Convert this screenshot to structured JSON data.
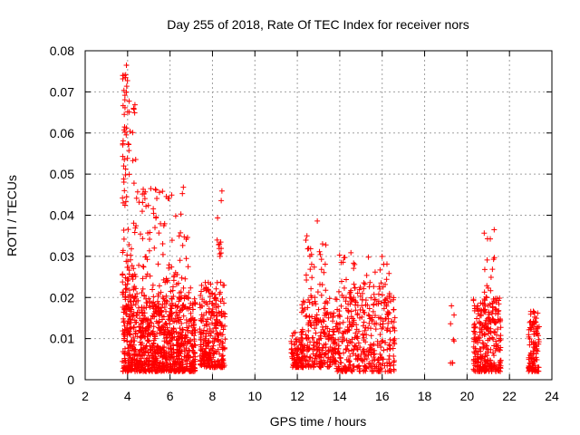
{
  "chart_data": {
    "type": "scatter",
    "title": "Day 255 of 2018, Rate Of TEC Index for receiver nors",
    "xlabel": "GPS time / hours",
    "ylabel": "ROTI / TECUs",
    "xlim": [
      2,
      24
    ],
    "ylim": [
      0,
      0.08
    ],
    "xticks": [
      2,
      4,
      6,
      8,
      10,
      12,
      14,
      16,
      18,
      20,
      22,
      24
    ],
    "yticks": [
      0,
      0.01,
      0.02,
      0.03,
      0.04,
      0.05,
      0.06,
      0.07,
      0.08
    ],
    "ytick_labels": [
      "0",
      "0.01",
      "0.02",
      "0.03",
      "0.04",
      "0.05",
      "0.06",
      "0.07",
      "0.08"
    ],
    "grid": true,
    "marker": "+",
    "color": "#ff0000",
    "clusters": [
      {
        "x_range": [
          3.75,
          7.2
        ],
        "y_range": [
          0.002,
          0.02
        ],
        "count": 900
      },
      {
        "x_range": [
          3.75,
          4.0
        ],
        "y_range": [
          0.02,
          0.079
        ],
        "count": 60
      },
      {
        "x_range": [
          4.0,
          4.4
        ],
        "y_range": [
          0.02,
          0.07
        ],
        "count": 50
      },
      {
        "x_range": [
          4.4,
          7.0
        ],
        "y_range": [
          0.02,
          0.047
        ],
        "count": 110
      },
      {
        "x_range": [
          7.4,
          8.6
        ],
        "y_range": [
          0.003,
          0.024
        ],
        "count": 280
      },
      {
        "x_range": [
          8.2,
          8.5
        ],
        "y_range": [
          0.03,
          0.047
        ],
        "count": 12
      },
      {
        "x_range": [
          11.7,
          12.3
        ],
        "y_range": [
          0.003,
          0.012
        ],
        "count": 90
      },
      {
        "x_range": [
          12.2,
          13.8
        ],
        "y_range": [
          0.003,
          0.02
        ],
        "count": 230
      },
      {
        "x_range": [
          12.4,
          13.4
        ],
        "y_range": [
          0.02,
          0.039
        ],
        "count": 30
      },
      {
        "x_range": [
          13.8,
          16.6
        ],
        "y_range": [
          0.002,
          0.02
        ],
        "count": 360
      },
      {
        "x_range": [
          13.9,
          16.4
        ],
        "y_range": [
          0.02,
          0.031
        ],
        "count": 55
      },
      {
        "x_range": [
          19.2,
          19.4
        ],
        "y_range": [
          0.004,
          0.021
        ],
        "count": 8
      },
      {
        "x_range": [
          20.3,
          21.6
        ],
        "y_range": [
          0.002,
          0.02
        ],
        "count": 280
      },
      {
        "x_range": [
          20.8,
          21.3
        ],
        "y_range": [
          0.02,
          0.039
        ],
        "count": 15
      },
      {
        "x_range": [
          22.9,
          23.4
        ],
        "y_range": [
          0.002,
          0.017
        ],
        "count": 110
      }
    ]
  }
}
